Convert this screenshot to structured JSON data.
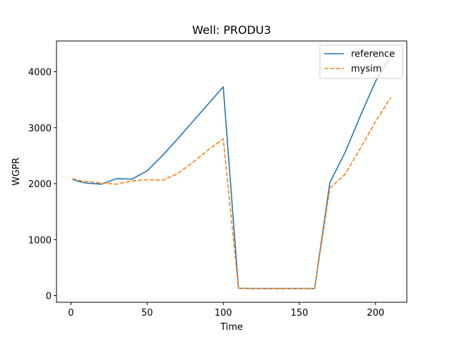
{
  "chart_data": {
    "type": "line",
    "title": "Well: PRODU3",
    "xlabel": "Time",
    "ylabel": "WGPR",
    "xlim": [
      -9.5,
      220.5
    ],
    "ylim": [
      -120,
      4550
    ],
    "xticks": [
      0,
      50,
      100,
      150,
      200
    ],
    "yticks": [
      0,
      1000,
      2000,
      3000,
      4000
    ],
    "grid": false,
    "legend_position": "top-right",
    "series": [
      {
        "name": "reference",
        "color": "#1f77b4",
        "style": "solid",
        "x": [
          1,
          5,
          10,
          20,
          30,
          40,
          50,
          60,
          70,
          80,
          90,
          100,
          110,
          120,
          130,
          140,
          150,
          160,
          170,
          180,
          190,
          200,
          210
        ],
        "y": [
          2080,
          2040,
          2010,
          1990,
          2090,
          2080,
          2230,
          2500,
          2800,
          3110,
          3420,
          3730,
          130,
          125,
          125,
          125,
          125,
          125,
          2020,
          2560,
          3210,
          3830,
          4280
        ]
      },
      {
        "name": "mysim",
        "color": "#ff7f0e",
        "style": "dashed",
        "x": [
          1,
          5,
          10,
          20,
          30,
          40,
          50,
          60,
          70,
          80,
          90,
          100,
          110,
          120,
          130,
          140,
          150,
          160,
          170,
          180,
          190,
          200,
          210
        ],
        "y": [
          2090,
          2060,
          2040,
          2010,
          1990,
          2050,
          2070,
          2060,
          2180,
          2380,
          2600,
          2800,
          130,
          125,
          125,
          125,
          125,
          125,
          1920,
          2170,
          2630,
          3110,
          3540
        ]
      }
    ]
  }
}
